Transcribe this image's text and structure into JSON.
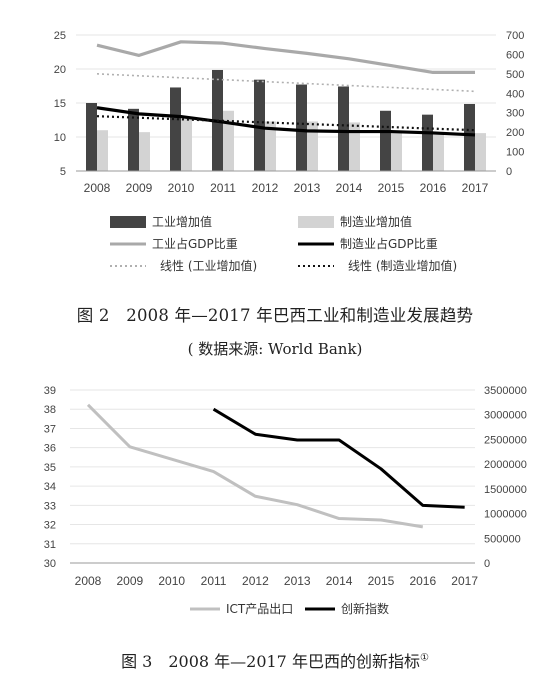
{
  "chart_data": [
    {
      "type": "bar",
      "categories": [
        "2008",
        "2009",
        "2010",
        "2011",
        "2012",
        "2013",
        "2014",
        "2015",
        "2016",
        "2017"
      ],
      "ylim": [
        5,
        25
      ],
      "yticks": [
        5,
        10,
        15,
        20,
        25
      ],
      "y2lim": [
        0,
        700
      ],
      "y2ticks": [
        0,
        100,
        200,
        300,
        400,
        500,
        600,
        700
      ],
      "series": [
        {
          "name": "工业增加值",
          "type": "bar",
          "axis": "right",
          "color": "#444444",
          "values": [
            350,
            320,
            430,
            520,
            470,
            445,
            435,
            310,
            290,
            345
          ]
        },
        {
          "name": "制造业增加值",
          "type": "bar",
          "axis": "right",
          "color": "#d3d3d3",
          "values": [
            210,
            200,
            270,
            310,
            255,
            255,
            250,
            205,
            195,
            195
          ]
        },
        {
          "name": "工业占GDP比重",
          "type": "line",
          "axis": "left",
          "color": "#a9a9a9",
          "values": [
            23.5,
            22.0,
            24.0,
            23.8,
            23.0,
            22.3,
            21.5,
            20.5,
            19.5,
            19.5
          ]
        },
        {
          "name": "制造业占GDP比重",
          "type": "line",
          "axis": "left",
          "color": "#000000",
          "values": [
            14.3,
            13.4,
            13.0,
            12.2,
            11.3,
            10.9,
            10.8,
            10.8,
            10.6,
            10.3
          ]
        },
        {
          "name": "线性 (工业增加值)",
          "type": "trend",
          "axis": "right",
          "color": "#b0b0b0",
          "values": [
            500,
            490,
            480,
            470,
            460,
            450,
            440,
            430,
            420,
            410
          ]
        },
        {
          "name": "线性 (制造业增加值)",
          "type": "trend",
          "axis": "right",
          "color": "#111111",
          "values": [
            282,
            274,
            266,
            258,
            250,
            242,
            234,
            226,
            218,
            210
          ]
        }
      ],
      "legend": [
        {
          "label": "工业增加值",
          "key": "bar",
          "color": "#444444"
        },
        {
          "label": "制造业增加值",
          "key": "bar",
          "color": "#d3d3d3"
        },
        {
          "label": "工业占GDP比重",
          "key": "line",
          "color": "#a9a9a9"
        },
        {
          "label": "制造业占GDP比重",
          "key": "line",
          "color": "#000000"
        },
        {
          "label": "线性 (工业增加值)",
          "key": "dots",
          "color": "#b0b0b0"
        },
        {
          "label": "线性 (制造业增加值)",
          "key": "dots",
          "color": "#111111"
        }
      ],
      "caption": "图 2　2008 年—2017 年巴西工业和制造业发展趋势",
      "source": "( 数据来源: World Bank)"
    },
    {
      "type": "line",
      "categories": [
        "2008",
        "2009",
        "2010",
        "2011",
        "2012",
        "2013",
        "2014",
        "2015",
        "2016",
        "2017"
      ],
      "ylim": [
        30,
        39
      ],
      "yticks": [
        30,
        31,
        32,
        33,
        34,
        35,
        36,
        37,
        38,
        39
      ],
      "y2lim": [
        0,
        3500000
      ],
      "y2ticks": [
        0,
        500000,
        1000000,
        1500000,
        2000000,
        2500000,
        3000000,
        3500000
      ],
      "series": [
        {
          "name": "ICT产品出口",
          "axis": "right",
          "color": "#c0c0c0",
          "values": [
            3200000,
            2350000,
            2100000,
            1850000,
            1350000,
            1180000,
            900000,
            870000,
            730000,
            null
          ]
        },
        {
          "name": "创新指数",
          "axis": "left",
          "color": "#000000",
          "values": [
            null,
            null,
            null,
            38.0,
            36.7,
            36.4,
            36.4,
            34.9,
            33.0,
            32.9
          ]
        }
      ],
      "legend": [
        {
          "label": "ICT产品出口",
          "color": "#c0c0c0"
        },
        {
          "label": "创新指数",
          "color": "#000000"
        }
      ],
      "caption": "图 3　2008 年—2017 年巴西的创新指标",
      "footnote_mark": "①"
    }
  ]
}
